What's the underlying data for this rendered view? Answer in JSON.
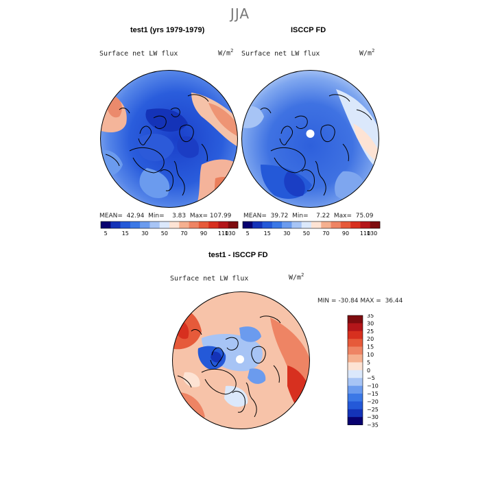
{
  "season": "JJA",
  "panels": [
    {
      "title": "test1 (yrs 1979-1979)",
      "variable": "Surface net LW flux",
      "units": "W/m",
      "units_exp": "2",
      "stats": {
        "mean_label": "MEAN=",
        "mean": "42.94",
        "min_label": "Min=",
        "min": "3.83",
        "max_label": "Max=",
        "max": "107.99"
      }
    },
    {
      "title": "ISCCP FD",
      "variable": "Surface net LW flux",
      "units": "W/m",
      "units_exp": "2",
      "stats": {
        "mean_label": "MEAN=",
        "mean": "39.72",
        "min_label": "Min=",
        "min": "7.22",
        "max_label": "Max=",
        "max": "75.09"
      }
    }
  ],
  "abs_colorbar": {
    "colors": [
      "#08006f",
      "#1433b8",
      "#2459d8",
      "#3b78e6",
      "#6b9bee",
      "#a7c4f5",
      "#dbe8fb",
      "#fde3d4",
      "#f5b08f",
      "#ee8464",
      "#e65a3a",
      "#d7301f",
      "#b4161a",
      "#7e0c0f"
    ],
    "labels": [
      "5",
      "15",
      "30",
      "50",
      "70",
      "90",
      "110",
      "130"
    ]
  },
  "diff_panel": {
    "title": "test1 - ISCCP FD",
    "variable": "Surface net LW flux",
    "units": "W/m",
    "units_exp": "2",
    "min_label": "MIN =",
    "min": "-30.84",
    "max_label": "MAX =",
    "max": "36.44"
  },
  "diff_colorbar": {
    "colors": [
      "#7e0c0f",
      "#b4161a",
      "#d7301f",
      "#e65a3a",
      "#ee8464",
      "#f5b08f",
      "#fde3d4",
      "#dbe8fb",
      "#a7c4f5",
      "#6b9bee",
      "#3b78e6",
      "#2459d8",
      "#1433b8",
      "#08006f"
    ],
    "labels": [
      "35",
      "30",
      "25",
      "20",
      "15",
      "10",
      "5",
      "0",
      "−5",
      "−10",
      "−15",
      "−20",
      "−25",
      "−30",
      "−35"
    ]
  }
}
